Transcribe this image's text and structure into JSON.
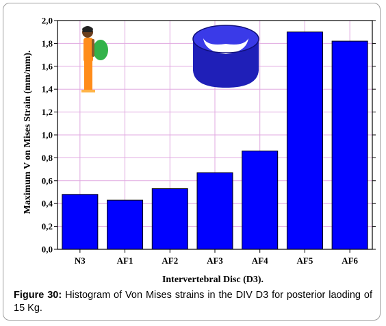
{
  "chart_data": {
    "type": "bar",
    "categories": [
      "N3",
      "AF1",
      "AF2",
      "AF3",
      "AF4",
      "AF5",
      "AF6"
    ],
    "values": [
      0.48,
      0.43,
      0.53,
      0.67,
      0.86,
      1.9,
      1.82
    ],
    "xlabel": "Intervertebral Disc (D3).",
    "ylabel": "Maximum V on Mises Strain (mm/mm).",
    "ylim": [
      0.0,
      2.0
    ],
    "yticks": [
      "0,0",
      "0,2",
      "0,4",
      "0,6",
      "0,8",
      "1,0",
      "1,2",
      "1,4",
      "1,6",
      "1,8",
      "2,0"
    ],
    "grid": true,
    "colors": {
      "bar": "#0000ff",
      "bar_edge": "#000000",
      "grid": "#e0a8e0",
      "figure_green": "#33b24a",
      "figure_orange": "#ff8c1a"
    },
    "insets": [
      "person-carrying-backpack-icon",
      "intervertebral-disc-3d-icon"
    ]
  },
  "caption": {
    "label": "Figure 30:",
    "text": "Histogram of Von Mises strains in the DIV D3 for posterior laoding of 15 Kg."
  }
}
